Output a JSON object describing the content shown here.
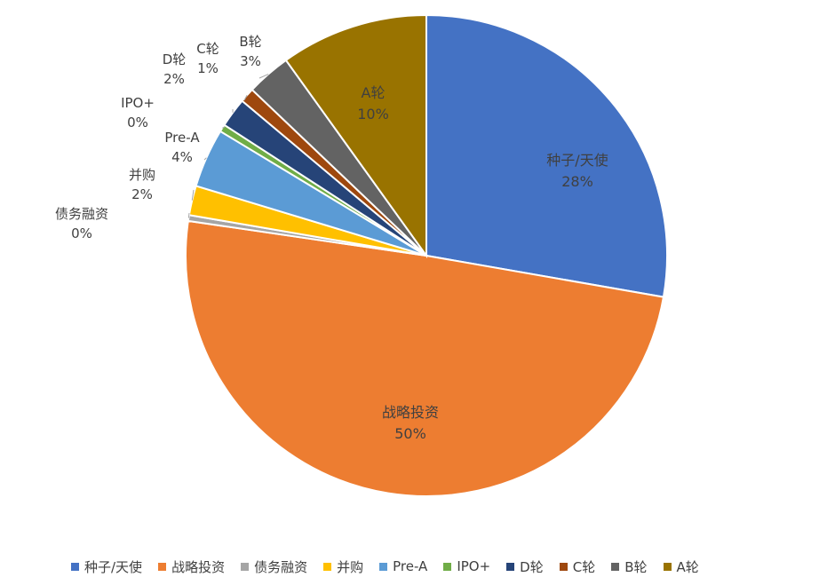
{
  "chart_data": {
    "type": "pie",
    "title": "",
    "start_angle_deg": 0,
    "direction": "clockwise",
    "slices": [
      {
        "name": "种子/天使",
        "value": 28,
        "label": "28%",
        "color": "#4472c4"
      },
      {
        "name": "战略投资",
        "value": 50,
        "label": "50%",
        "color": "#ed7d31"
      },
      {
        "name": "债务融资",
        "value": 0.4,
        "label": "0%",
        "color": "#a5a5a5"
      },
      {
        "name": "并购",
        "value": 2,
        "label": "2%",
        "color": "#ffc000"
      },
      {
        "name": "Pre-A",
        "value": 4,
        "label": "4%",
        "color": "#5b9bd5"
      },
      {
        "name": "IPO+",
        "value": 0.5,
        "label": "0%",
        "color": "#70ad47"
      },
      {
        "name": "D轮",
        "value": 2,
        "label": "2%",
        "color": "#264478"
      },
      {
        "name": "C轮",
        "value": 1,
        "label": "1%",
        "color": "#9e480e"
      },
      {
        "name": "B轮",
        "value": 3,
        "label": "3%",
        "color": "#636363"
      },
      {
        "name": "A轮",
        "value": 10,
        "label": "10%",
        "color": "#997300"
      }
    ],
    "legend_position": "bottom"
  }
}
